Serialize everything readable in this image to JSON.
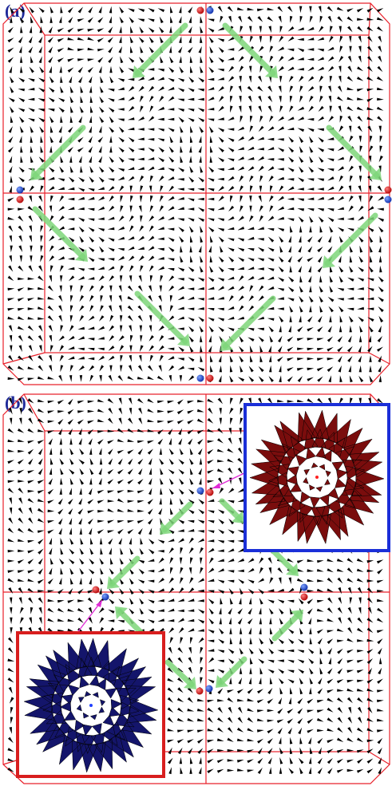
{
  "panels": [
    {
      "id": "a",
      "label": "(a)"
    },
    {
      "id": "b",
      "label": "(b)"
    }
  ],
  "colors": {
    "boundary": "#e8202a",
    "arrow_field": "#000000",
    "flow_arrow": "#7ed67a",
    "charge_positive": "#d81e1e",
    "charge_negative": "#1f4fd6",
    "inset_red_frame": "#d81e1e",
    "inset_blue_frame": "#1b2fd8",
    "inset_red_glyphs": "#7a0d0d",
    "inset_blue_glyphs": "#14156b",
    "pointer_line": "#e02bd6"
  },
  "icons": [
    "vector-field-arrow",
    "flow-arrow",
    "positive-defect-dot",
    "negative-defect-dot",
    "hedgehog-inset"
  ]
}
